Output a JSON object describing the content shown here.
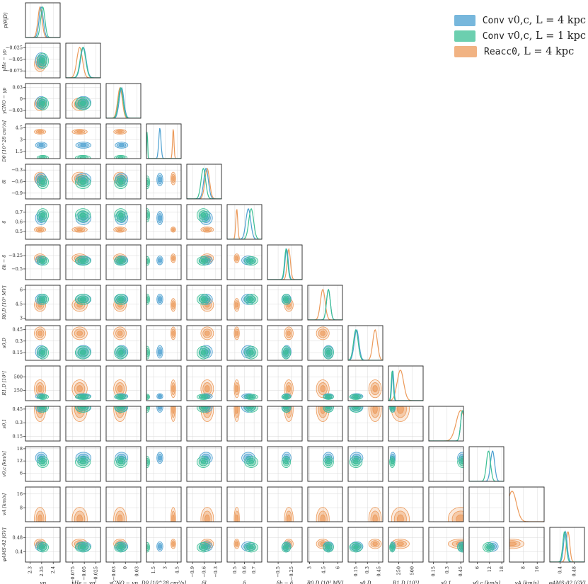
{
  "legend": [
    {
      "mono": "Conv",
      "math": " v0,c, L = 4 kpc",
      "color": "#4a9fd0"
    },
    {
      "mono": "Conv",
      "math": " v0,c, L = 1 kpc",
      "color": "#3bbf94"
    },
    {
      "mono": "Reacc0",
      "math": ", L = 4 kpc",
      "color": "#ec9a5a"
    }
  ],
  "chart_data": {
    "type": "corner",
    "colors": {
      "series_blue": "#4a9fd0",
      "series_green": "#3bbf94",
      "series_orange": "#ec9a5a",
      "grid": "#d9d9d9"
    },
    "diag_ylabel": "p(θ|D)",
    "params": [
      {
        "label": "γp",
        "ylabel": "",
        "xticks": [
          2.3,
          2.35,
          2.4
        ],
        "range": [
          2.28,
          2.43
        ],
        "means": [
          2.348,
          2.355,
          2.343
        ],
        "sd": [
          0.009,
          0.009,
          0.009
        ]
      },
      {
        "label": "γHe − γp",
        "ylabel": "γHe − γp",
        "xticks": [
          -0.075,
          -0.05,
          -0.025
        ],
        "range": [
          -0.09,
          -0.015
        ],
        "means": [
          -0.052,
          -0.053,
          -0.06
        ],
        "sd": [
          0.006,
          0.006,
          0.006
        ]
      },
      {
        "label": "γCNO − γp",
        "ylabel": "γCNO − γp",
        "xticks": [
          -0.03,
          0.0,
          0.03
        ],
        "range": [
          -0.05,
          0.04
        ],
        "means": [
          -0.01,
          -0.012,
          -0.014
        ],
        "sd": [
          0.006,
          0.006,
          0.006
        ]
      },
      {
        "label": "D0 [10^28 cm²/s]",
        "ylabel": "D0 [10^28 cm²/s]",
        "xticks": [
          1.5,
          3.0,
          4.5
        ],
        "range": [
          0.6,
          5.0
        ],
        "means": [
          2.3,
          0.7,
          4.0
        ],
        "sd": [
          0.14,
          0.05,
          0.09
        ]
      },
      {
        "label": "δl",
        "ylabel": "δl",
        "xticks": [
          -0.9,
          -0.6,
          -0.3
        ],
        "range": [
          -1.05,
          -0.15
        ],
        "means": [
          -0.55,
          -0.62,
          -0.52
        ],
        "sd": [
          0.06,
          0.06,
          0.06
        ]
      },
      {
        "label": "δ",
        "ylabel": "δ",
        "xticks": [
          0.5,
          0.6,
          0.7
        ],
        "range": [
          0.42,
          0.78
        ],
        "means": [
          0.64,
          0.67,
          0.52
        ],
        "sd": [
          0.025,
          0.025,
          0.01
        ]
      },
      {
        "label": "δh − δ",
        "ylabel": "δh − δ",
        "xticks": [
          -0.5,
          -0.25
        ],
        "range": [
          -0.7,
          -0.05
        ],
        "means": [
          -0.34,
          -0.35,
          -0.3
        ],
        "sd": [
          0.03,
          0.03,
          0.03
        ]
      },
      {
        "label": "R0,D [10³ MV]",
        "ylabel": "R0,D [10³ MV]",
        "xticks": [
          3.0,
          4.5,
          6.0
        ],
        "range": [
          2.8,
          6.5
        ],
        "means": [
          5.0,
          5.0,
          4.4
        ],
        "sd": [
          0.2,
          0.2,
          0.25
        ]
      },
      {
        "label": "s0,D",
        "ylabel": "s0,D",
        "xticks": [
          0.15,
          0.3,
          0.45
        ],
        "range": [
          0.05,
          0.5
        ],
        "means": [
          0.16,
          0.15,
          0.4
        ],
        "sd": [
          0.03,
          0.03,
          0.03
        ]
      },
      {
        "label": "R1,D [10³]",
        "ylabel": "R1,D [10³]",
        "xticks": [
          250,
          500
        ],
        "range": [
          60,
          700
        ],
        "means": [
          140,
          130,
          280
        ],
        "sd": [
          18,
          18,
          60
        ]
      },
      {
        "label": "s0,1",
        "ylabel": "s0,1",
        "xticks": [
          0.15,
          0.3,
          0.45
        ],
        "range": [
          0.1,
          0.48
        ],
        "means": [
          0.47,
          0.47,
          0.45
        ],
        "sd": [
          0.02,
          0.02,
          0.05
        ]
      },
      {
        "label": "v0,c [km/s]",
        "ylabel": "v0,c [km/s]",
        "xticks": [
          6,
          12,
          18
        ],
        "range": [
          2,
          19
        ],
        "means": [
          13.5,
          11.5,
          null
        ],
        "sd": [
          1.0,
          1.0,
          null
        ]
      },
      {
        "label": "vA [km/s]",
        "ylabel": "vA [km/s]",
        "xticks": [
          8,
          16
        ],
        "range": [
          0,
          20
        ],
        "means": [
          null,
          null,
          1.5
        ],
        "sd": [
          null,
          null,
          2.5
        ]
      },
      {
        "label": "φAMS-02 [GV]",
        "ylabel": "φAMS-02 [GV]",
        "xticks": [
          0.4,
          0.48
        ],
        "range": [
          0.34,
          0.54
        ],
        "means": [
          0.43,
          0.425,
          0.445
        ],
        "sd": [
          0.01,
          0.01,
          0.01
        ]
      }
    ]
  }
}
